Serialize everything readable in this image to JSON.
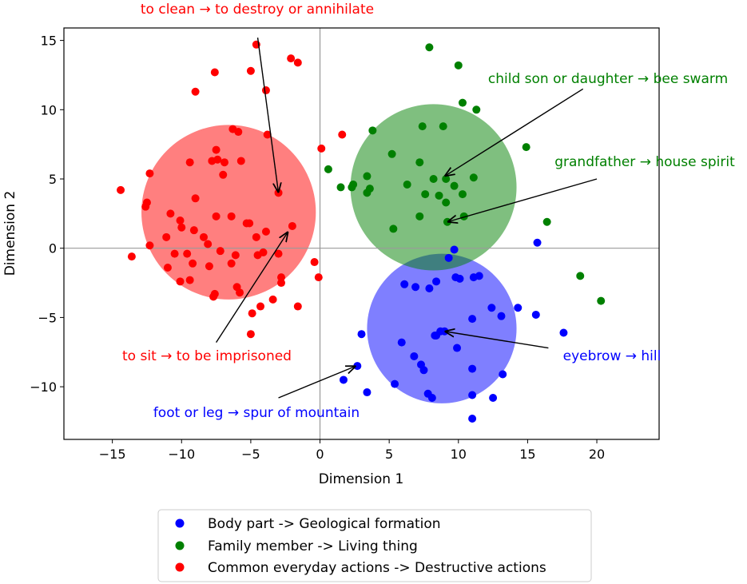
{
  "chart_data": {
    "type": "scatter",
    "xlabel": "Dimension 1",
    "ylabel": "Dimension 2",
    "xlim": [
      -18.5,
      24.5
    ],
    "ylim": [
      -13.8,
      15.9
    ],
    "xticks": [
      -15,
      -10,
      -5,
      0,
      5,
      10,
      15,
      20
    ],
    "yticks": [
      -10,
      -5,
      0,
      5,
      10,
      15
    ],
    "zero_lines": true,
    "legend_position": "bottom-center, below plot",
    "series": [
      {
        "name": "Body part -> Geological formation",
        "color": "#0000ff",
        "circle": {
          "cx": 8.8,
          "cy": -5.8,
          "r": 5.4,
          "color": "#0000ff"
        },
        "points": [
          [
            9.7,
            -0.1
          ],
          [
            9.3,
            -0.7
          ],
          [
            9.8,
            -2.1
          ],
          [
            10.1,
            -2.2
          ],
          [
            11.1,
            -2.1
          ],
          [
            11.5,
            -2.0
          ],
          [
            12.4,
            -4.3
          ],
          [
            11,
            -5.1
          ],
          [
            13.1,
            -4.9
          ],
          [
            14.3,
            -4.3
          ],
          [
            15.6,
            -4.8
          ],
          [
            15.7,
            0.4
          ],
          [
            17.6,
            -6.1
          ],
          [
            9,
            -6.0
          ],
          [
            8.7,
            -6.0
          ],
          [
            8.4,
            -6.3
          ],
          [
            8.3,
            -6.3
          ],
          [
            6.1,
            -2.6
          ],
          [
            6.9,
            -2.8
          ],
          [
            7.9,
            -2.9
          ],
          [
            8.4,
            -2.4
          ],
          [
            3,
            -6.2
          ],
          [
            2.7,
            -8.5
          ],
          [
            1.7,
            -9.5
          ],
          [
            3.4,
            -10.4
          ],
          [
            5.9,
            -6.8
          ],
          [
            6.8,
            -7.8
          ],
          [
            7.3,
            -8.4
          ],
          [
            7.5,
            -8.8
          ],
          [
            7.8,
            -10.5
          ],
          [
            8.1,
            -10.8
          ],
          [
            5.4,
            -9.8
          ],
          [
            9.9,
            -7.2
          ],
          [
            11,
            -8.7
          ],
          [
            11,
            -10.6
          ],
          [
            11,
            -12.3
          ],
          [
            13.2,
            -9.1
          ],
          [
            12.5,
            -10.8
          ]
        ]
      },
      {
        "name": "Family member -> Living thing",
        "color": "#008000",
        "circle": {
          "cx": 8.2,
          "cy": 4.4,
          "r": 6.0,
          "color": "#008000"
        },
        "points": [
          [
            7.9,
            14.5
          ],
          [
            10,
            13.2
          ],
          [
            10.3,
            10.5
          ],
          [
            11.3,
            10.0
          ],
          [
            7.4,
            8.8
          ],
          [
            8.9,
            8.8
          ],
          [
            14.9,
            7.3
          ],
          [
            3.8,
            8.5
          ],
          [
            5.2,
            6.8
          ],
          [
            7.2,
            6.2
          ],
          [
            3.4,
            5.2
          ],
          [
            6.3,
            4.6
          ],
          [
            8.2,
            5.0
          ],
          [
            9.1,
            5.0
          ],
          [
            9.7,
            4.5
          ],
          [
            11.1,
            5.1
          ],
          [
            10.3,
            3.9
          ],
          [
            8.6,
            3.8
          ],
          [
            7.6,
            3.9
          ],
          [
            3.4,
            4.0
          ],
          [
            3.6,
            4.3
          ],
          [
            2.3,
            4.4
          ],
          [
            2.4,
            4.6
          ],
          [
            1.5,
            4.4
          ],
          [
            0.6,
            5.7
          ],
          [
            9.1,
            3.3
          ],
          [
            10.4,
            2.3
          ],
          [
            9.2,
            1.9
          ],
          [
            7.2,
            2.3
          ],
          [
            5.3,
            1.4
          ],
          [
            16.4,
            1.9
          ],
          [
            18.8,
            -2.0
          ],
          [
            20.3,
            -3.8
          ]
        ]
      },
      {
        "name": "Common everyday actions -> Destructive actions",
        "color": "#ff0000",
        "circle": {
          "cx": -6.6,
          "cy": 2.6,
          "r": 6.3,
          "color": "#ff0000"
        },
        "points": [
          [
            -4.6,
            14.7
          ],
          [
            -2.1,
            13.7
          ],
          [
            -1.6,
            13.4
          ],
          [
            -7.6,
            12.7
          ],
          [
            -5.0,
            12.8
          ],
          [
            -3.9,
            11.4
          ],
          [
            -9.0,
            11.3
          ],
          [
            -3.8,
            8.2
          ],
          [
            -6.3,
            8.6
          ],
          [
            -5.9,
            8.4
          ],
          [
            -7.5,
            7.1
          ],
          [
            -7.4,
            6.4
          ],
          [
            -5.7,
            6.3
          ],
          [
            -7.8,
            6.3
          ],
          [
            -6.9,
            6.2
          ],
          [
            -9.4,
            6.2
          ],
          [
            -12.3,
            5.4
          ],
          [
            -7.0,
            5.3
          ],
          [
            -9.0,
            3.6
          ],
          [
            -14.4,
            4.2
          ],
          [
            -12.6,
            3.0
          ],
          [
            -10.8,
            2.5
          ],
          [
            -12.5,
            3.3
          ],
          [
            -6.4,
            2.3
          ],
          [
            -7.5,
            2.3
          ],
          [
            -5.3,
            1.8
          ],
          [
            -5.1,
            1.8
          ],
          [
            -10.1,
            2.0
          ],
          [
            -10.0,
            1.5
          ],
          [
            -9.1,
            1.3
          ],
          [
            -11.1,
            0.8
          ],
          [
            -8.4,
            0.8
          ],
          [
            -3.9,
            1.2
          ],
          [
            -12.3,
            0.2
          ],
          [
            -4.6,
            0.8
          ],
          [
            -13.6,
            -0.6
          ],
          [
            -10.5,
            -0.4
          ],
          [
            -9.6,
            -0.4
          ],
          [
            -8.1,
            0.3
          ],
          [
            -7.2,
            -0.2
          ],
          [
            -6.1,
            -0.5
          ],
          [
            -4.5,
            -0.5
          ],
          [
            -3.0,
            -0.4
          ],
          [
            -9.2,
            -1.1
          ],
          [
            -8.0,
            -1.3
          ],
          [
            -6.4,
            -1.1
          ],
          [
            -4.1,
            -0.3
          ],
          [
            -11.0,
            -1.4
          ],
          [
            -10.1,
            -2.4
          ],
          [
            -9.4,
            -2.3
          ],
          [
            -6.0,
            -2.8
          ],
          [
            -2.8,
            -2.1
          ],
          [
            -2.8,
            -2.5
          ],
          [
            -5.8,
            -3.2
          ],
          [
            -4.3,
            -4.2
          ],
          [
            -3.4,
            -3.7
          ],
          [
            -4.9,
            -4.7
          ],
          [
            -7.6,
            -3.3
          ],
          [
            -7.7,
            -3.5
          ],
          [
            -5.0,
            -6.2
          ],
          [
            -3.0,
            4.0
          ],
          [
            -1.6,
            -4.2
          ],
          [
            0.1,
            7.2
          ],
          [
            1.6,
            8.2
          ],
          [
            -0.4,
            -1.0
          ],
          [
            -0.1,
            -2.1
          ],
          [
            -2.0,
            1.6
          ]
        ]
      }
    ],
    "annotations": [
      {
        "text": "to clean → to destroy or annihilate",
        "color": "#ff0000",
        "from": [
          -4.5,
          15.2
        ],
        "to": [
          -3.0,
          4.0
        ]
      },
      {
        "text": "to sit → to be imprisoned",
        "color": "#ff0000",
        "from": [
          -7.5,
          -6.8
        ],
        "to": [
          -2.3,
          1.2
        ]
      },
      {
        "text": "child son or daughter → bee swarm",
        "color": "#008000",
        "from": [
          19.0,
          11.5
        ],
        "to": [
          9.0,
          5.2
        ]
      },
      {
        "text": "grandfather → house spirit",
        "color": "#008000",
        "from": [
          20.0,
          5.0
        ],
        "to": [
          9.2,
          1.9
        ]
      },
      {
        "text": "eyebrow → hill",
        "color": "#0000ff",
        "from": [
          16.5,
          -7.2
        ],
        "to": [
          9.0,
          -6.0
        ]
      },
      {
        "text": "foot or leg → spur of mountain",
        "color": "#0000ff",
        "from": [
          -3.0,
          -10.8
        ],
        "to": [
          2.6,
          -8.5
        ]
      }
    ],
    "legend": [
      {
        "label": "Body part -> Geological formation",
        "color": "#0000ff"
      },
      {
        "label": "Family member -> Living thing",
        "color": "#008000"
      },
      {
        "label": "Common everyday actions -> Destructive actions",
        "color": "#ff0000"
      }
    ]
  }
}
